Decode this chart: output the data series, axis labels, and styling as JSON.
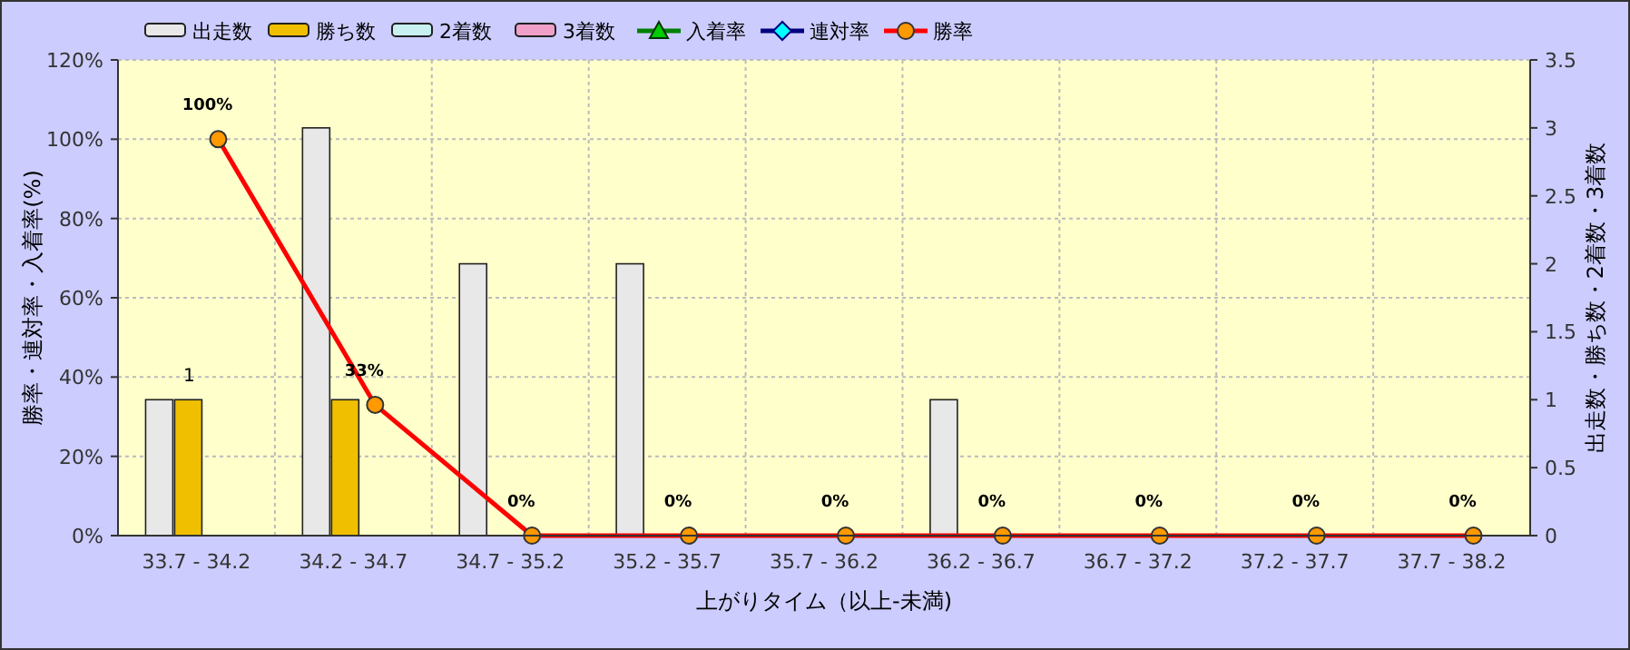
{
  "chart_data": {
    "type": "bar",
    "xlabel": "上がりタイム（以上-未満)",
    "ylabel": "勝率・連対率・入着率(%)",
    "y2label": "出走数・勝ち数・2着数・3着数",
    "categories": [
      "33.7 - 34.2",
      "34.2 - 34.7",
      "34.7 - 35.2",
      "35.2 - 35.7",
      "35.7 - 36.2",
      "36.2 - 36.7",
      "36.7 - 37.2",
      "37.2 - 37.7",
      "37.7 - 38.2"
    ],
    "series": [
      {
        "name": "出走数",
        "axis": "y2",
        "color": "#e8e8e8",
        "values": [
          1,
          3,
          2,
          2,
          0,
          1,
          0,
          0,
          0
        ]
      },
      {
        "name": "勝ち数",
        "axis": "y2",
        "color": "#f0c000",
        "values": [
          1,
          1,
          0,
          0,
          0,
          0,
          0,
          0,
          0
        ],
        "value_labels": [
          "1",
          null,
          null,
          null,
          null,
          null,
          null,
          null,
          null
        ]
      },
      {
        "name": "2着数",
        "axis": "y2",
        "color": "#c8f0f0",
        "values": [
          0,
          0,
          0,
          0,
          0,
          0,
          0,
          0,
          0
        ]
      },
      {
        "name": "3着数",
        "axis": "y2",
        "color": "#f0a0c8",
        "values": [
          0,
          0,
          0,
          0,
          0,
          0,
          0,
          0,
          0
        ]
      },
      {
        "name": "入着率",
        "type": "line",
        "color": "#008000",
        "marker": "triangle",
        "values": [
          null,
          null,
          null,
          null,
          null,
          null,
          null,
          null,
          null
        ]
      },
      {
        "name": "連対率",
        "type": "line",
        "color": "#000080",
        "marker": "diamond",
        "values": [
          null,
          null,
          null,
          null,
          null,
          null,
          null,
          null,
          null
        ]
      },
      {
        "name": "勝率",
        "type": "line",
        "color": "#ff0000",
        "marker": "circle",
        "values": [
          100,
          33,
          0,
          0,
          0,
          0,
          0,
          0,
          0
        ],
        "value_labels": [
          "100%",
          "33%",
          "0%",
          "0%",
          "0%",
          "0%",
          "0%",
          "0%",
          "0%"
        ]
      }
    ],
    "ylim": [
      0,
      120
    ],
    "yticks": [
      {
        "value": 0,
        "label": "0%"
      },
      {
        "value": 20,
        "label": "20%"
      },
      {
        "value": 40,
        "label": "40%"
      },
      {
        "value": 60,
        "label": "60%"
      },
      {
        "value": 80,
        "label": "80%"
      },
      {
        "value": 100,
        "label": "100%"
      },
      {
        "value": 120,
        "label": "120%"
      }
    ],
    "y2lim": [
      0,
      3.5
    ],
    "y2ticks": [
      0,
      0.5,
      1,
      1.5,
      2,
      2.5,
      3,
      3.5
    ],
    "grid": true,
    "legend": "top left"
  }
}
